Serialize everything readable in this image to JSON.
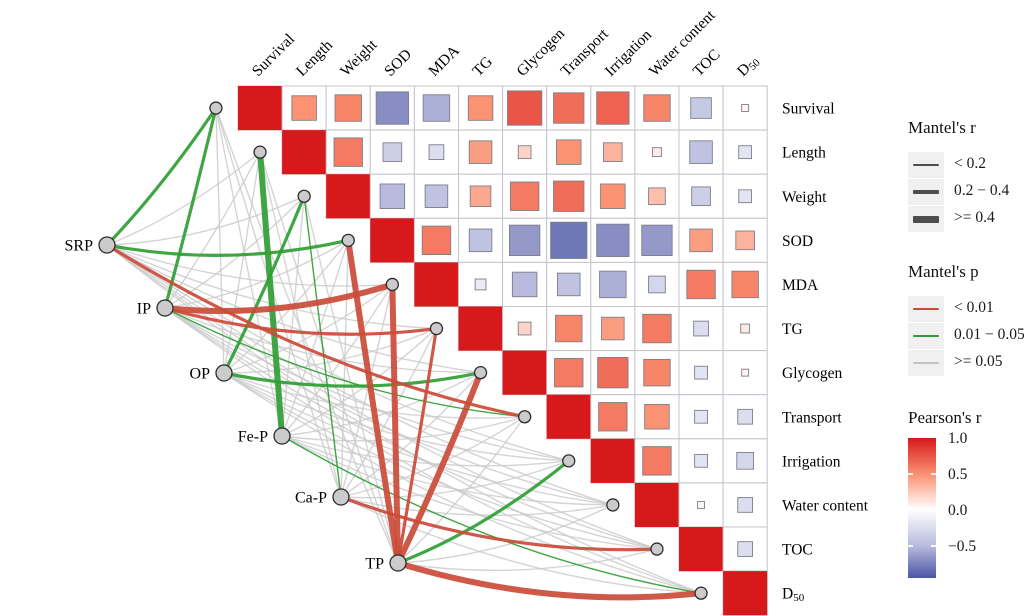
{
  "chart_data": {
    "type": "heatmap",
    "description": "Mantel test network plot: phosphorus fractions linked to a Pearson correlation upper-triangle matrix",
    "variables": [
      {
        "id": "Survival",
        "label": "Survival"
      },
      {
        "id": "Length",
        "label": "Length"
      },
      {
        "id": "Weight",
        "label": "Weight"
      },
      {
        "id": "SOD",
        "label": "SOD"
      },
      {
        "id": "MDA",
        "label": "MDA"
      },
      {
        "id": "TG",
        "label": "TG"
      },
      {
        "id": "Glycogen",
        "label": "Glycogen"
      },
      {
        "id": "Transport",
        "label": "Transport"
      },
      {
        "id": "Irrigation",
        "label": "Irrigation"
      },
      {
        "id": "Water content",
        "label": "Water content"
      },
      {
        "id": "TOC",
        "label": "TOC"
      },
      {
        "id": "D50",
        "label": "D",
        "sub": "50"
      }
    ],
    "pearson_r_upper": [
      [
        1.0,
        0.5,
        0.55,
        -0.7,
        -0.55,
        0.5,
        0.75,
        0.65,
        0.7,
        0.55,
        -0.4,
        0.05
      ],
      [
        null,
        1.0,
        0.6,
        -0.35,
        -0.25,
        0.45,
        0.2,
        0.5,
        0.35,
        0.1,
        -0.45,
        -0.2
      ],
      [
        null,
        null,
        1.0,
        -0.5,
        -0.45,
        0.4,
        0.6,
        0.65,
        0.5,
        0.3,
        -0.35,
        -0.2
      ],
      [
        null,
        null,
        null,
        1.0,
        0.6,
        -0.45,
        -0.65,
        -0.8,
        -0.7,
        -0.65,
        0.45,
        0.35
      ],
      [
        null,
        null,
        null,
        null,
        1.0,
        -0.15,
        -0.5,
        -0.45,
        -0.55,
        -0.3,
        0.6,
        0.55
      ],
      [
        null,
        null,
        null,
        null,
        null,
        1.0,
        0.2,
        0.55,
        0.45,
        0.6,
        -0.25,
        0.1
      ],
      [
        null,
        null,
        null,
        null,
        null,
        null,
        1.0,
        0.6,
        0.65,
        0.55,
        -0.2,
        0.05
      ],
      [
        null,
        null,
        null,
        null,
        null,
        null,
        null,
        1.0,
        0.6,
        0.5,
        -0.2,
        -0.25
      ],
      [
        null,
        null,
        null,
        null,
        null,
        null,
        null,
        null,
        1.0,
        0.6,
        -0.2,
        -0.3
      ],
      [
        null,
        null,
        null,
        null,
        null,
        null,
        null,
        null,
        null,
        1.0,
        -0.05,
        -0.25
      ],
      [
        null,
        null,
        null,
        null,
        null,
        null,
        null,
        null,
        null,
        null,
        1.0,
        -0.25
      ],
      [
        null,
        null,
        null,
        null,
        null,
        null,
        null,
        null,
        null,
        null,
        null,
        1.0
      ]
    ],
    "network": {
      "source_nodes": [
        {
          "id": "SRP",
          "label": "SRP"
        },
        {
          "id": "IP",
          "label": "IP"
        },
        {
          "id": "OP",
          "label": "OP"
        },
        {
          "id": "Fe-P",
          "label": "Fe-P"
        },
        {
          "id": "Ca-P",
          "label": "Ca-P"
        },
        {
          "id": "TP",
          "label": "TP"
        }
      ],
      "default_edge": {
        "mantel_p": ">=0.05",
        "mantel_r": "<0.2"
      },
      "highlighted_edges": [
        {
          "from": "SRP",
          "to": "Survival",
          "mantel_p": "0.01-0.05",
          "mantel_r": "0.2-0.4"
        },
        {
          "from": "SRP",
          "to": "SOD",
          "mantel_p": "0.01-0.05",
          "mantel_r": "0.2-0.4"
        },
        {
          "from": "SRP",
          "to": "Transport",
          "mantel_p": "<0.01",
          "mantel_r": "0.2-0.4"
        },
        {
          "from": "IP",
          "to": "Survival",
          "mantel_p": "0.01-0.05",
          "mantel_r": "0.2-0.4"
        },
        {
          "from": "IP",
          "to": "MDA",
          "mantel_p": "<0.01",
          "mantel_r": ">=0.4"
        },
        {
          "from": "IP",
          "to": "TG",
          "mantel_p": "<0.01",
          "mantel_r": "0.2-0.4"
        },
        {
          "from": "IP",
          "to": "Transport",
          "mantel_p": "0.01-0.05",
          "mantel_r": "<0.2"
        },
        {
          "from": "OP",
          "to": "Weight",
          "mantel_p": "0.01-0.05",
          "mantel_r": "0.2-0.4"
        },
        {
          "from": "OP",
          "to": "Glycogen",
          "mantel_p": "0.01-0.05",
          "mantel_r": "0.2-0.4"
        },
        {
          "from": "Fe-P",
          "to": "Length",
          "mantel_p": "0.01-0.05",
          "mantel_r": ">=0.4"
        },
        {
          "from": "Fe-P",
          "to": "D50",
          "mantel_p": "0.01-0.05",
          "mantel_r": "<0.2"
        },
        {
          "from": "Ca-P",
          "to": "Weight",
          "mantel_p": "0.01-0.05",
          "mantel_r": "<0.2"
        },
        {
          "from": "Ca-P",
          "to": "TOC",
          "mantel_p": "<0.01",
          "mantel_r": "0.2-0.4"
        },
        {
          "from": "TP",
          "to": "SOD",
          "mantel_p": "<0.01",
          "mantel_r": ">=0.4"
        },
        {
          "from": "TP",
          "to": "MDA",
          "mantel_p": "<0.01",
          "mantel_r": ">=0.4"
        },
        {
          "from": "TP",
          "to": "TG",
          "mantel_p": "<0.01",
          "mantel_r": "0.2-0.4"
        },
        {
          "from": "TP",
          "to": "Glycogen",
          "mantel_p": "<0.01",
          "mantel_r": ">=0.4"
        },
        {
          "from": "TP",
          "to": "Irrigation",
          "mantel_p": "0.01-0.05",
          "mantel_r": "0.2-0.4"
        },
        {
          "from": "TP",
          "to": "D50",
          "mantel_p": "<0.01",
          "mantel_r": ">=0.4"
        }
      ]
    },
    "axis": {
      "grid": "upper-triangle only",
      "legend_position": "right"
    }
  },
  "legends": {
    "mantel_r": {
      "title": "Mantel's r",
      "items": [
        {
          "label": "< 0.2",
          "width_class": "thin"
        },
        {
          "label": "0.2 − 0.4",
          "width_class": "medium"
        },
        {
          "label": ">= 0.4",
          "width_class": "thick"
        }
      ]
    },
    "mantel_p": {
      "title": "Mantel's p",
      "items": [
        {
          "label": "< 0.01",
          "color": "#cb4b38"
        },
        {
          "label": "0.01 − 0.05",
          "color": "#2f9e33"
        },
        {
          "label": ">= 0.05",
          "color": "#c3c3c3"
        }
      ]
    },
    "pearson": {
      "title": "Pearson's r",
      "ticks": [
        {
          "label": "1.0",
          "value": 1.0
        },
        {
          "label": "0.5",
          "value": 0.5
        },
        {
          "label": "0.0",
          "value": 0.0
        },
        {
          "label": "−0.5",
          "value": -0.5
        }
      ]
    }
  },
  "colors": {
    "positive_full": "#d7191c",
    "positive_mid": "#fb9272",
    "negative_full": "#3f4a9e",
    "negative_mid": "#b8bbdd",
    "edge_red": "#cb4b38",
    "edge_green": "#2f9e33",
    "edge_gray": "#c9c9c9",
    "node_fill": "#cbcbcb",
    "node_stroke": "#2b2b2b",
    "grid_stroke": "#c4c4cc",
    "square_stroke": "#7e7e8c"
  }
}
